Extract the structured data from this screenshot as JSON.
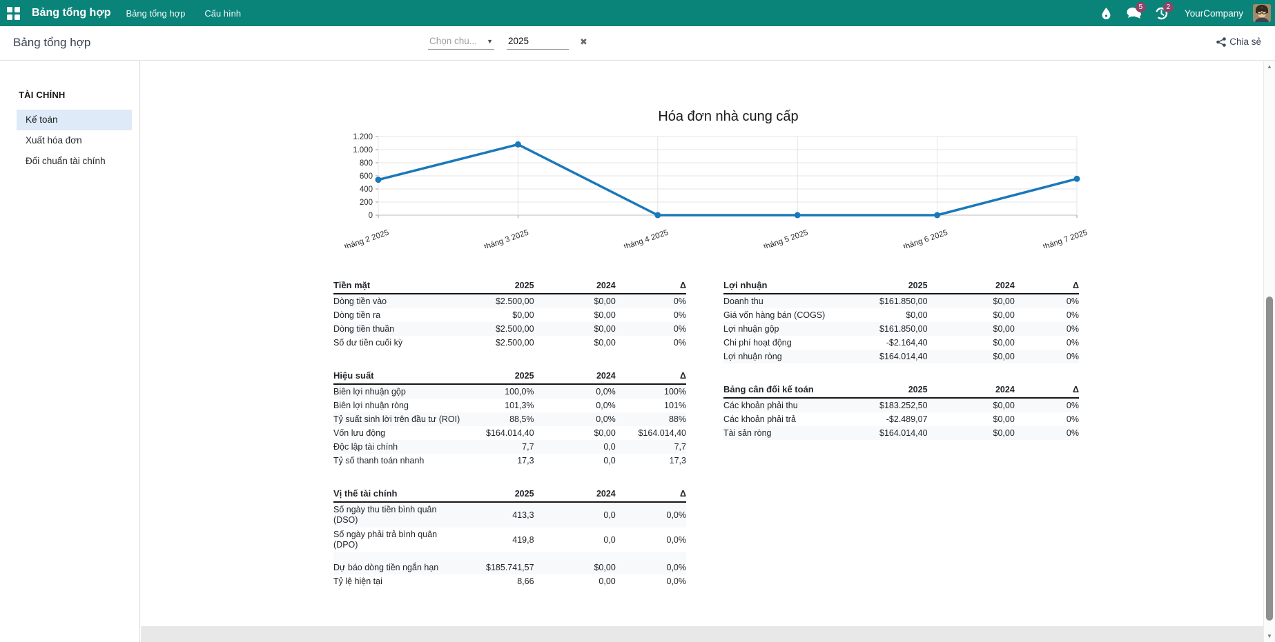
{
  "navbar": {
    "brand": "Bảng tổng hợp",
    "menu": [
      "Bảng tổng hợp",
      "Cấu hình"
    ],
    "company": "YourCompany",
    "messages_badge": "5",
    "activities_badge": "2",
    "bg_color": "#0a8379",
    "badge_color": "#8b4668"
  },
  "control_panel": {
    "title": "Bảng tổng hợp",
    "period_placeholder": "Chọn chu...",
    "year_value": "2025",
    "clear_icon": "✖",
    "share_label": "Chia sẻ"
  },
  "sidebar": {
    "section": "TÀI CHÍNH",
    "items": [
      {
        "label": "Kế toán",
        "active": true
      },
      {
        "label": "Xuất hóa đơn",
        "active": false
      },
      {
        "label": "Đối chuẩn tài chính",
        "active": false
      }
    ]
  },
  "chart_data": {
    "type": "line",
    "title": "Hóa đơn nhà cung cấp",
    "categories": [
      "tháng 2 2025",
      "tháng 3 2025",
      "tháng 4 2025",
      "tháng 5 2025",
      "tháng 6 2025",
      "tháng 7 2025"
    ],
    "values": [
      540,
      1080,
      0,
      0,
      0,
      555
    ],
    "ylim": [
      0,
      1200
    ],
    "yticks": [
      0,
      200,
      400,
      600,
      800,
      1000,
      1200
    ],
    "ytick_labels": [
      "0",
      "200",
      "400",
      "600",
      "800",
      "1.000",
      "1.200"
    ],
    "line_color": "#1a78ba",
    "grid": true,
    "legend": "none",
    "xlabel": "",
    "ylabel": ""
  },
  "tables": {
    "columns": [
      "2025",
      "2024",
      "Δ"
    ],
    "stripe_color": "#f7f9fb",
    "left": [
      {
        "title": "Tiền mặt",
        "rows": [
          [
            "Dòng tiền vào",
            "$2.500,00",
            "$0,00",
            "0%"
          ],
          [
            "Dòng tiền ra",
            "$0,00",
            "$0,00",
            "0%"
          ],
          [
            "Dòng tiền thuần",
            "$2.500,00",
            "$0,00",
            "0%"
          ],
          [
            "Số dư tiền cuối kỳ",
            "$2.500,00",
            "$0,00",
            "0%"
          ]
        ]
      },
      {
        "title": "Hiệu suất",
        "rows": [
          [
            "Biên lợi nhuận gộp",
            "100,0%",
            "0,0%",
            "100%"
          ],
          [
            "Biên lợi nhuận ròng",
            "101,3%",
            "0,0%",
            "101%"
          ],
          [
            "Tỷ suất sinh lời trên đầu tư (ROI)",
            "88,5%",
            "0,0%",
            "88%"
          ],
          [
            "Vốn lưu động",
            "$164.014,40",
            "$0,00",
            "$164.014,40"
          ],
          [
            "Độc lập tài chính",
            "7,7",
            "0,0",
            "7,7"
          ],
          [
            "Tỷ số thanh toán nhanh",
            "17,3",
            "0,0",
            "17,3"
          ]
        ]
      },
      {
        "title": "Vị thế tài chính",
        "rows": [
          [
            "Số ngày thu tiền bình quân\n(DSO)",
            "413,3",
            "0,0",
            "0,0%"
          ],
          [
            "Số ngày phải trả bình quân\n(DPO)",
            "419,8",
            "0,0",
            "0,0%"
          ],
          [
            "",
            "",
            "",
            ""
          ],
          [
            "Dự báo dòng tiền ngắn hạn",
            "$185.741,57",
            "$0,00",
            "0,0%"
          ],
          [
            "Tỷ lệ hiện tại",
            "8,66",
            "0,00",
            "0,0%"
          ]
        ]
      }
    ],
    "right": [
      {
        "title": "Lợi nhuận",
        "rows": [
          [
            "Doanh thu",
            "$161.850,00",
            "$0,00",
            "0%"
          ],
          [
            "Giá vốn hàng bán (COGS)",
            "$0,00",
            "$0,00",
            "0%"
          ],
          [
            "Lợi nhuận gộp",
            "$161.850,00",
            "$0,00",
            "0%"
          ],
          [
            "Chi phí hoạt động",
            "-$2.164,40",
            "$0,00",
            "0%"
          ],
          [
            "Lợi nhuận ròng",
            "$164.014,40",
            "$0,00",
            "0%"
          ]
        ]
      },
      {
        "title": "Bảng cân đối kế toán",
        "rows": [
          [
            "Các khoản phải thu",
            "$183.252,50",
            "$0,00",
            "0%"
          ],
          [
            "Các khoản phải trả",
            "-$2.489,07",
            "$0,00",
            "0%"
          ],
          [
            "Tài sản ròng",
            "$164.014,40",
            "$0,00",
            "0%"
          ]
        ]
      }
    ]
  }
}
